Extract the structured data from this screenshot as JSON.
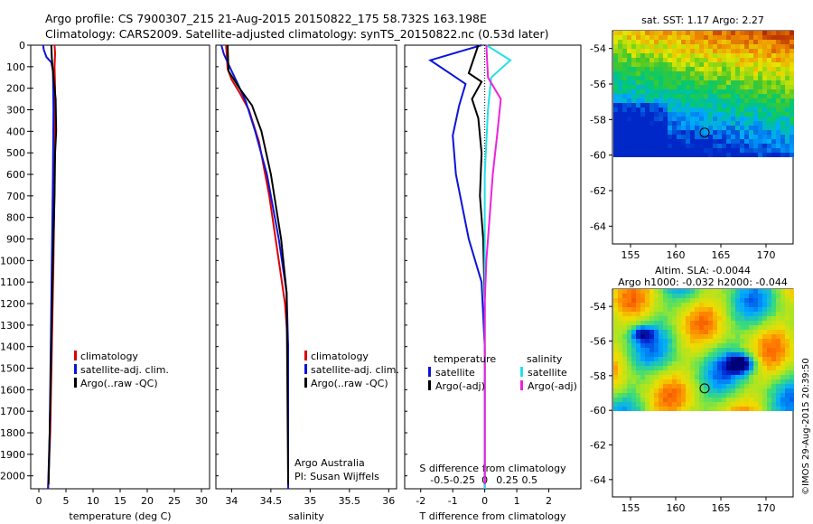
{
  "header": {
    "line1": "Argo profile: CS 7900307_215 21-Aug-2015 20150822_175 58.732S 163.198E",
    "line2": "Climatology: CARS2009. Satellite-adjusted climatology: synTS_20150822.nc (0.53d later)"
  },
  "credit": "©IMOS 29-Aug-2015 20:39:50",
  "colors": {
    "red": "#dd0000",
    "blue": "#0a14d8",
    "black": "#000000",
    "cyan": "#22e0e8",
    "magenta": "#ee22dd"
  },
  "depth_axis": {
    "ticks": [
      0,
      100,
      200,
      300,
      400,
      500,
      600,
      700,
      800,
      900,
      1000,
      1100,
      1200,
      1300,
      1400,
      1500,
      1600,
      1700,
      1800,
      1900,
      2000
    ],
    "range": [
      0,
      2060
    ]
  },
  "chart_data": [
    {
      "type": "line",
      "id": "temperature",
      "xlabel": "temperature (deg C)",
      "xlim": [
        -1.5,
        31.5
      ],
      "xticks": [
        0,
        5,
        10,
        15,
        20,
        25,
        30
      ],
      "legend": [
        "climatology",
        "satellite-adj. clim.",
        "Argo(..raw -QC)"
      ],
      "series": [
        {
          "name": "climatology",
          "color": "red",
          "points": [
            [
              2.9,
              0
            ],
            [
              3.0,
              40
            ],
            [
              2.9,
              100
            ],
            [
              3.0,
              200
            ],
            [
              3.0,
              400
            ],
            [
              2.9,
              600
            ],
            [
              2.7,
              1000
            ],
            [
              2.4,
              1400
            ],
            [
              2.1,
              1800
            ],
            [
              1.7,
              2060
            ]
          ]
        },
        {
          "name": "satellite-adj. clim.",
          "color": "blue",
          "points": [
            [
              0.8,
              0
            ],
            [
              0.9,
              20
            ],
            [
              1.4,
              55
            ],
            [
              2.3,
              80
            ],
            [
              2.6,
              120
            ],
            [
              2.7,
              300
            ],
            [
              2.6,
              600
            ],
            [
              2.4,
              1000
            ],
            [
              2.2,
              1400
            ],
            [
              2.0,
              1800
            ],
            [
              1.7,
              2060
            ]
          ]
        },
        {
          "name": "Argo(..raw -QC)",
          "color": "black",
          "points": [
            [
              2.3,
              0
            ],
            [
              2.4,
              60
            ],
            [
              2.6,
              120
            ],
            [
              3.1,
              250
            ],
            [
              3.2,
              400
            ],
            [
              3.0,
              500
            ],
            [
              2.9,
              700
            ],
            [
              2.6,
              1000
            ],
            [
              2.3,
              1400
            ],
            [
              2.0,
              1800
            ],
            [
              1.8,
              2040
            ]
          ]
        }
      ]
    },
    {
      "type": "line",
      "id": "salinity",
      "xlabel": "salinity",
      "xlim": [
        33.8,
        36.1
      ],
      "xticks": [
        34,
        34.5,
        35,
        35.5,
        36
      ],
      "legend": [
        "climatology",
        "satellite-adj. clim.",
        "Argo(..raw -QC)"
      ],
      "annotations": [
        "Argo Australia",
        "PI: Susan Wijffels"
      ],
      "series": [
        {
          "name": "climatology",
          "color": "red",
          "points": [
            [
              33.93,
              0
            ],
            [
              33.94,
              60
            ],
            [
              33.95,
              110
            ],
            [
              34.0,
              160
            ],
            [
              34.1,
              220
            ],
            [
              34.22,
              300
            ],
            [
              34.35,
              450
            ],
            [
              34.48,
              700
            ],
            [
              34.6,
              1000
            ],
            [
              34.68,
              1200
            ],
            [
              34.72,
              1400
            ],
            [
              34.72,
              2060
            ]
          ]
        },
        {
          "name": "satellite-adj. clim.",
          "color": "blue",
          "points": [
            [
              33.87,
              0
            ],
            [
              33.9,
              40
            ],
            [
              33.95,
              80
            ],
            [
              34.0,
              120
            ],
            [
              34.08,
              180
            ],
            [
              34.18,
              260
            ],
            [
              34.3,
              400
            ],
            [
              34.45,
              600
            ],
            [
              34.6,
              900
            ],
            [
              34.7,
              1150
            ],
            [
              34.72,
              1400
            ],
            [
              34.72,
              2060
            ]
          ]
        },
        {
          "name": "Argo(..raw -QC)",
          "color": "black",
          "points": [
            [
              33.95,
              0
            ],
            [
              33.96,
              120
            ],
            [
              34.1,
              200
            ],
            [
              34.26,
              280
            ],
            [
              34.38,
              400
            ],
            [
              34.5,
              600
            ],
            [
              34.63,
              900
            ],
            [
              34.7,
              1150
            ],
            [
              34.72,
              2040
            ]
          ]
        }
      ]
    },
    {
      "type": "line",
      "id": "difference",
      "xlabel": "T difference from climatology",
      "xlabel2": "S difference from climatology",
      "xlim": [
        -2.5,
        3
      ],
      "xticks": [
        -2,
        -1,
        0,
        1,
        2
      ],
      "xticks2": [
        {
          "v": -1.4,
          "label": "-0.5"
        },
        {
          "v": -0.7,
          "label": "-0.25"
        },
        {
          "v": 0,
          "label": "0"
        },
        {
          "v": 0.7,
          "label": "0.25"
        },
        {
          "v": 1.4,
          "label": "0.5"
        }
      ],
      "legend_heads": [
        "temperature",
        "salinity"
      ],
      "legend": [
        "satellite",
        "Argo(-adj)",
        "satellite",
        "Argo(-adj)"
      ],
      "series": [
        {
          "name": "satellite",
          "group": "temperature",
          "color": "blue",
          "points": [
            [
              -0.1,
              0
            ],
            [
              -1.7,
              70
            ],
            [
              -0.6,
              180
            ],
            [
              -0.8,
              280
            ],
            [
              -1.0,
              420
            ],
            [
              -0.9,
              600
            ],
            [
              -0.5,
              900
            ],
            [
              -0.1,
              1100
            ],
            [
              0,
              1400
            ],
            [
              0,
              2060
            ]
          ]
        },
        {
          "name": "Argo(-adj)",
          "group": "temperature",
          "color": "black",
          "points": [
            [
              -0.2,
              0
            ],
            [
              -0.5,
              130
            ],
            [
              -0.1,
              170
            ],
            [
              -0.4,
              250
            ],
            [
              -0.2,
              340
            ],
            [
              -0.1,
              500
            ],
            [
              -0.15,
              700
            ],
            [
              -0.05,
              900
            ],
            [
              0,
              1200
            ],
            [
              0,
              2040
            ]
          ]
        },
        {
          "name": "satellite",
          "group": "salinity",
          "color": "cyan",
          "points": [
            [
              0.05,
              0
            ],
            [
              0.8,
              70
            ],
            [
              0.2,
              150
            ],
            [
              0.1,
              300
            ],
            [
              0,
              600
            ],
            [
              0,
              2060
            ]
          ]
        },
        {
          "name": "Argo(-adj)",
          "group": "salinity",
          "color": "magenta",
          "points": [
            [
              0.05,
              0
            ],
            [
              0.1,
              150
            ],
            [
              0.5,
              250
            ],
            [
              0.4,
              400
            ],
            [
              0.25,
              600
            ],
            [
              0.15,
              800
            ],
            [
              0.05,
              1000
            ],
            [
              0,
              1200
            ],
            [
              0,
              2040
            ]
          ]
        }
      ]
    },
    {
      "type": "heatmap",
      "id": "sst-map",
      "title": "sat. SST: 1.17 Argo: 2.27",
      "xlim": [
        153,
        173
      ],
      "ylim": [
        -65,
        -53
      ],
      "xticks": [
        155,
        160,
        165,
        170
      ],
      "yticks": [
        -54,
        -56,
        -58,
        -60,
        -62,
        -64
      ],
      "data_extent": {
        "lat": [
          -60,
          -53
        ]
      },
      "marker": {
        "lon": 163.2,
        "lat": -58.73
      }
    },
    {
      "type": "heatmap",
      "id": "sla-map",
      "title": "Altim. SLA: -0.0044",
      "subtitle": "Argo h1000: -0.032 h2000: -0.044",
      "xlim": [
        153,
        173
      ],
      "ylim": [
        -65,
        -53
      ],
      "xticks": [
        155,
        160,
        165,
        170
      ],
      "yticks": [
        -54,
        -56,
        -58,
        -60,
        -62,
        -64
      ],
      "data_extent": {
        "lat": [
          -60,
          -53
        ]
      },
      "marker": {
        "lon": 163.2,
        "lat": -58.73
      }
    }
  ]
}
